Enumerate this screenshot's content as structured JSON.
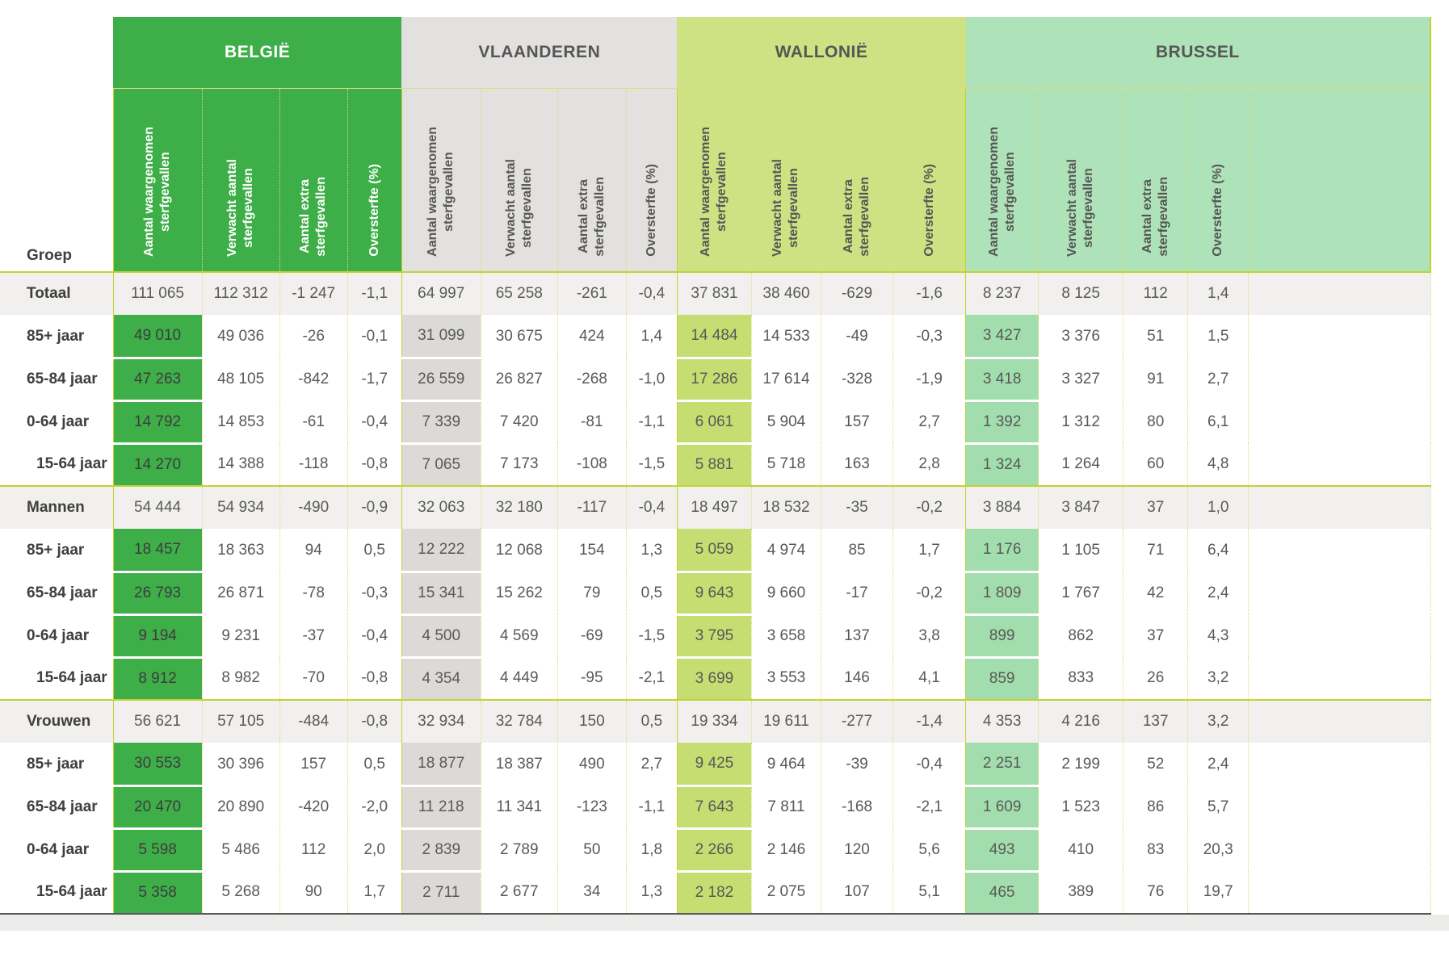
{
  "colors": {
    "belgie_header": "#3eae48",
    "belgie_cell": "#3eae48",
    "belgie_cell_text": "#3d3d3d",
    "vlaanderen_header": "#e3e1df",
    "vlaanderen_cell": "#dcdad7",
    "wallonie_header": "#cfe283",
    "wallonie_cell": "#c6dd72",
    "brussel_header": "#aee2b8",
    "brussel_cell": "#a2ddad",
    "summary_row_bg": "#f1f0ee",
    "grid_dotted": "#dcdd7e",
    "grid_solid": "#c3d234",
    "bottom_line": "#57585a",
    "footer_strip": "#ececea",
    "header_text_light": "#ffffff",
    "header_text_dark": "#565656",
    "data_text": "#595959",
    "label_text": "#3f3f3f"
  },
  "chart_data": {
    "type": "table",
    "corner_label": "Groep",
    "regions": [
      {
        "key": "belgie",
        "label": "BELGIË"
      },
      {
        "key": "vlaanderen",
        "label": "VLAANDEREN"
      },
      {
        "key": "wallonie",
        "label": "WALLONIË"
      },
      {
        "key": "brussel",
        "label": "BRUSSEL"
      }
    ],
    "column_headers": [
      "Aantal waargenomen\nsterfgevallen",
      "Verwacht aantal\nsterfgevallen",
      "Aantal extra\nsterfgevallen",
      "Oversterfte (%)"
    ],
    "rows": [
      {
        "label": "Totaal",
        "kind": "summary",
        "section_start": false,
        "indent": false,
        "values": {
          "belgie": [
            "111 065",
            "112 312",
            "-1 247",
            "-1,1"
          ],
          "vlaanderen": [
            "64 997",
            "65 258",
            "-261",
            "-0,4"
          ],
          "wallonie": [
            "37 831",
            "38 460",
            "-629",
            "-1,6"
          ],
          "brussel": [
            "8 237",
            "8 125",
            "112",
            "1,4"
          ]
        }
      },
      {
        "label": "85+ jaar",
        "kind": "detail",
        "section_start": false,
        "indent": false,
        "values": {
          "belgie": [
            "49 010",
            "49 036",
            "-26",
            "-0,1"
          ],
          "vlaanderen": [
            "31 099",
            "30 675",
            "424",
            "1,4"
          ],
          "wallonie": [
            "14 484",
            "14 533",
            "-49",
            "-0,3"
          ],
          "brussel": [
            "3 427",
            "3 376",
            "51",
            "1,5"
          ]
        }
      },
      {
        "label": "65-84 jaar",
        "kind": "detail",
        "section_start": false,
        "indent": false,
        "values": {
          "belgie": [
            "47 263",
            "48 105",
            "-842",
            "-1,7"
          ],
          "vlaanderen": [
            "26 559",
            "26 827",
            "-268",
            "-1,0"
          ],
          "wallonie": [
            "17 286",
            "17 614",
            "-328",
            "-1,9"
          ],
          "brussel": [
            "3 418",
            "3 327",
            "91",
            "2,7"
          ]
        }
      },
      {
        "label": "0-64 jaar",
        "kind": "detail",
        "section_start": false,
        "indent": false,
        "values": {
          "belgie": [
            "14 792",
            "14 853",
            "-61",
            "-0,4"
          ],
          "vlaanderen": [
            "7 339",
            "7 420",
            "-81",
            "-1,1"
          ],
          "wallonie": [
            "6 061",
            "5 904",
            "157",
            "2,7"
          ],
          "brussel": [
            "1 392",
            "1 312",
            "80",
            "6,1"
          ]
        }
      },
      {
        "label": "15-64 jaar",
        "kind": "detail",
        "section_start": false,
        "indent": true,
        "values": {
          "belgie": [
            "14 270",
            "14 388",
            "-118",
            "-0,8"
          ],
          "vlaanderen": [
            "7 065",
            "7 173",
            "-108",
            "-1,5"
          ],
          "wallonie": [
            "5 881",
            "5 718",
            "163",
            "2,8"
          ],
          "brussel": [
            "1 324",
            "1 264",
            "60",
            "4,8"
          ]
        }
      },
      {
        "label": "Mannen",
        "kind": "summary",
        "section_start": true,
        "indent": false,
        "values": {
          "belgie": [
            "54 444",
            "54 934",
            "-490",
            "-0,9"
          ],
          "vlaanderen": [
            "32 063",
            "32 180",
            "-117",
            "-0,4"
          ],
          "wallonie": [
            "18 497",
            "18 532",
            "-35",
            "-0,2"
          ],
          "brussel": [
            "3 884",
            "3 847",
            "37",
            "1,0"
          ]
        }
      },
      {
        "label": "85+ jaar",
        "kind": "detail",
        "section_start": false,
        "indent": false,
        "values": {
          "belgie": [
            "18 457",
            "18 363",
            "94",
            "0,5"
          ],
          "vlaanderen": [
            "12 222",
            "12 068",
            "154",
            "1,3"
          ],
          "wallonie": [
            "5 059",
            "4 974",
            "85",
            "1,7"
          ],
          "brussel": [
            "1 176",
            "1 105",
            "71",
            "6,4"
          ]
        }
      },
      {
        "label": "65-84 jaar",
        "kind": "detail",
        "section_start": false,
        "indent": false,
        "values": {
          "belgie": [
            "26 793",
            "26 871",
            "-78",
            "-0,3"
          ],
          "vlaanderen": [
            "15 341",
            "15 262",
            "79",
            "0,5"
          ],
          "wallonie": [
            "9 643",
            "9 660",
            "-17",
            "-0,2"
          ],
          "brussel": [
            "1 809",
            "1 767",
            "42",
            "2,4"
          ]
        }
      },
      {
        "label": "0-64 jaar",
        "kind": "detail",
        "section_start": false,
        "indent": false,
        "values": {
          "belgie": [
            "9 194",
            "9 231",
            "-37",
            "-0,4"
          ],
          "vlaanderen": [
            "4 500",
            "4 569",
            "-69",
            "-1,5"
          ],
          "wallonie": [
            "3 795",
            "3 658",
            "137",
            "3,8"
          ],
          "brussel": [
            "899",
            "862",
            "37",
            "4,3"
          ]
        }
      },
      {
        "label": "15-64 jaar",
        "kind": "detail",
        "section_start": false,
        "indent": true,
        "values": {
          "belgie": [
            "8 912",
            "8 982",
            "-70",
            "-0,8"
          ],
          "vlaanderen": [
            "4 354",
            "4 449",
            "-95",
            "-2,1"
          ],
          "wallonie": [
            "3 699",
            "3 553",
            "146",
            "4,1"
          ],
          "brussel": [
            "859",
            "833",
            "26",
            "3,2"
          ]
        }
      },
      {
        "label": "Vrouwen",
        "kind": "summary",
        "section_start": true,
        "indent": false,
        "values": {
          "belgie": [
            "56 621",
            "57 105",
            "-484",
            "-0,8"
          ],
          "vlaanderen": [
            "32 934",
            "32 784",
            "150",
            "0,5"
          ],
          "wallonie": [
            "19 334",
            "19 611",
            "-277",
            "-1,4"
          ],
          "brussel": [
            "4 353",
            "4 216",
            "137",
            "3,2"
          ]
        }
      },
      {
        "label": "85+ jaar",
        "kind": "detail",
        "section_start": false,
        "indent": false,
        "values": {
          "belgie": [
            "30 553",
            "30 396",
            "157",
            "0,5"
          ],
          "vlaanderen": [
            "18 877",
            "18 387",
            "490",
            "2,7"
          ],
          "wallonie": [
            "9 425",
            "9 464",
            "-39",
            "-0,4"
          ],
          "brussel": [
            "2 251",
            "2 199",
            "52",
            "2,4"
          ]
        }
      },
      {
        "label": "65-84 jaar",
        "kind": "detail",
        "section_start": false,
        "indent": false,
        "values": {
          "belgie": [
            "20 470",
            "20 890",
            "-420",
            "-2,0"
          ],
          "vlaanderen": [
            "11 218",
            "11 341",
            "-123",
            "-1,1"
          ],
          "wallonie": [
            "7 643",
            "7 811",
            "-168",
            "-2,1"
          ],
          "brussel": [
            "1 609",
            "1 523",
            "86",
            "5,7"
          ]
        }
      },
      {
        "label": "0-64 jaar",
        "kind": "detail",
        "section_start": false,
        "indent": false,
        "values": {
          "belgie": [
            "5 598",
            "5 486",
            "112",
            "2,0"
          ],
          "vlaanderen": [
            "2 839",
            "2 789",
            "50",
            "1,8"
          ],
          "wallonie": [
            "2 266",
            "2 146",
            "120",
            "5,6"
          ],
          "brussel": [
            "493",
            "410",
            "83",
            "20,3"
          ]
        }
      },
      {
        "label": "15-64 jaar",
        "kind": "detail",
        "section_start": false,
        "indent": true,
        "values": {
          "belgie": [
            "5 358",
            "5 268",
            "90",
            "1,7"
          ],
          "vlaanderen": [
            "2 711",
            "2 677",
            "34",
            "1,3"
          ],
          "wallonie": [
            "2 182",
            "2 075",
            "107",
            "5,1"
          ],
          "brussel": [
            "465",
            "389",
            "76",
            "19,7"
          ]
        }
      }
    ]
  }
}
